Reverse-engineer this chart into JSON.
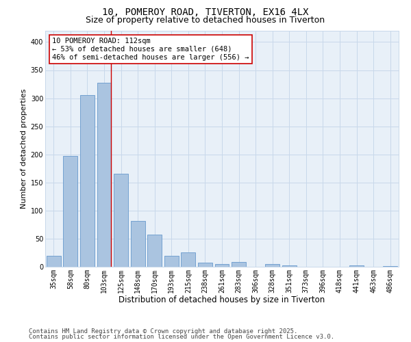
{
  "title_line1": "10, POMEROY ROAD, TIVERTON, EX16 4LX",
  "title_line2": "Size of property relative to detached houses in Tiverton",
  "xlabel": "Distribution of detached houses by size in Tiverton",
  "ylabel": "Number of detached properties",
  "categories": [
    "35sqm",
    "58sqm",
    "80sqm",
    "103sqm",
    "125sqm",
    "148sqm",
    "170sqm",
    "193sqm",
    "215sqm",
    "238sqm",
    "261sqm",
    "283sqm",
    "306sqm",
    "328sqm",
    "351sqm",
    "373sqm",
    "396sqm",
    "418sqm",
    "441sqm",
    "463sqm",
    "486sqm"
  ],
  "values": [
    20,
    197,
    305,
    328,
    165,
    82,
    57,
    20,
    25,
    7,
    5,
    8,
    0,
    5,
    2,
    0,
    0,
    0,
    2,
    0,
    1
  ],
  "bar_color": "#aac4e0",
  "bar_edge_color": "#6699cc",
  "grid_color": "#c8d8ea",
  "background_color": "#e8f0f8",
  "annotation_text": "10 POMEROY ROAD: 112sqm\n← 53% of detached houses are smaller (648)\n46% of semi-detached houses are larger (556) →",
  "vline_bin": 3,
  "vline_color": "#cc0000",
  "ylim": [
    0,
    420
  ],
  "yticks": [
    0,
    50,
    100,
    150,
    200,
    250,
    300,
    350,
    400
  ],
  "footer_line1": "Contains HM Land Registry data © Crown copyright and database right 2025.",
  "footer_line2": "Contains public sector information licensed under the Open Government Licence v3.0.",
  "title1_fontsize": 10,
  "title2_fontsize": 9,
  "xlabel_fontsize": 8.5,
  "ylabel_fontsize": 8,
  "tick_fontsize": 7,
  "footer_fontsize": 6.5,
  "annotation_fontsize": 7.5
}
